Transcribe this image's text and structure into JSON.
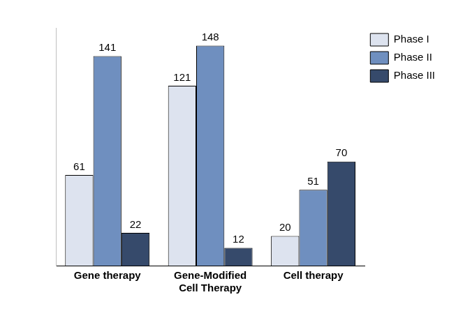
{
  "chart_data": {
    "type": "bar",
    "categories": [
      "Gene therapy",
      "Gene-Modified Cell Therapy",
      "Cell therapy"
    ],
    "series": [
      {
        "name": "Phase I",
        "color": "#dde3ef",
        "values": [
          61,
          121,
          20
        ]
      },
      {
        "name": "Phase II",
        "color": "#6f8fbf",
        "values": [
          141,
          148,
          51
        ]
      },
      {
        "name": "Phase III",
        "color": "#364a6b",
        "values": [
          22,
          12,
          70
        ]
      }
    ],
    "ylim": [
      0,
      160
    ],
    "grid": false,
    "legend": "top-right",
    "data_labels": true,
    "tick_labels": "x"
  }
}
